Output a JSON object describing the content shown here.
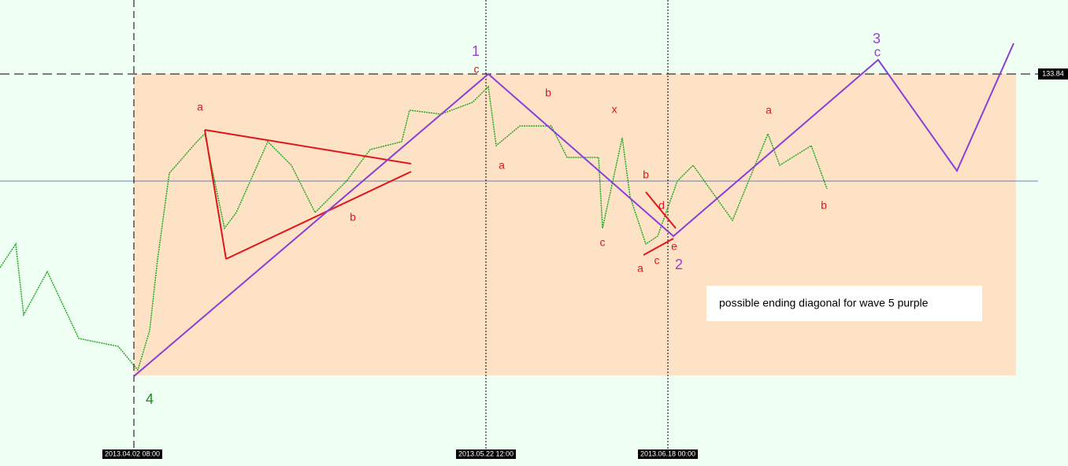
{
  "price_label": "133.84",
  "dates": [
    "2013.04.02 08:00",
    "2013.05.22 12:00",
    "2013.06.18 00:00"
  ],
  "wave_labels": [
    "1",
    "2",
    "3",
    "4"
  ],
  "sub_labels": [
    "a",
    "b",
    "c",
    "a",
    "b",
    "c",
    "x",
    "b",
    "d",
    "e",
    "c",
    "a",
    "a",
    "b",
    "c"
  ],
  "note": "possible ending diagonal for wave 5 purple"
}
